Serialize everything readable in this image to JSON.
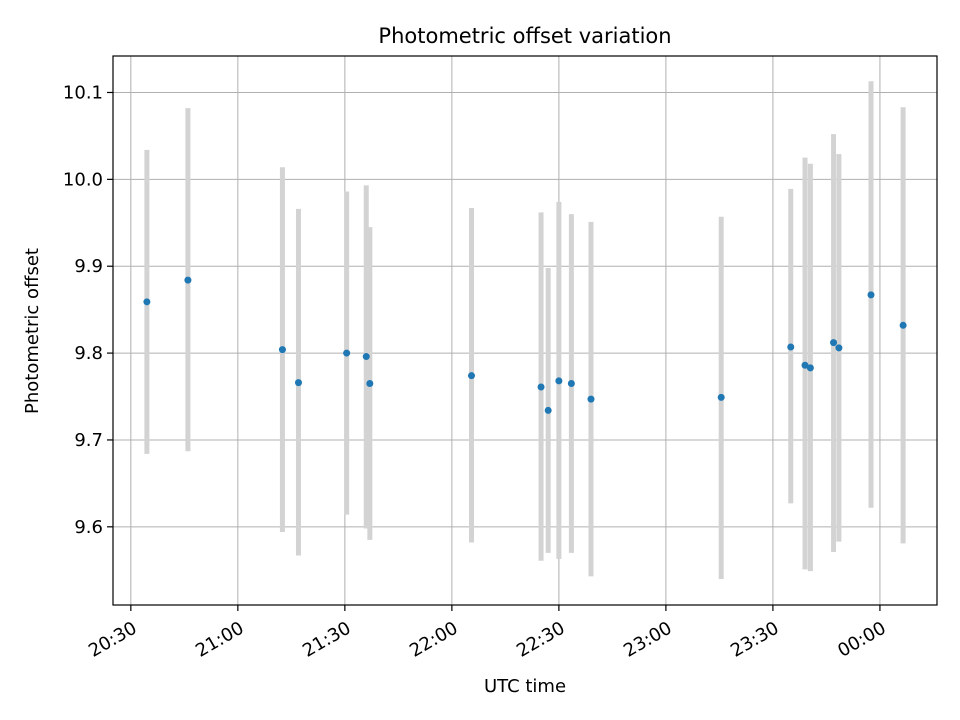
{
  "chart_data": {
    "type": "scatter",
    "title": "Photometric offset variation",
    "xlabel": "UTC time",
    "ylabel": "Photometric offset",
    "x_unit": "UTC clock time (HH:MM)",
    "xlim": [
      "20:25",
      "00:16"
    ],
    "ylim": [
      9.51,
      10.142
    ],
    "grid": true,
    "legend": "none",
    "marker_color": "#1f77b4",
    "errorbar_color": "#d3d3d3",
    "xticks": [
      "20:30",
      "21:00",
      "21:30",
      "22:00",
      "22:30",
      "23:00",
      "23:30",
      "00:00"
    ],
    "yticks": [
      9.6,
      9.7,
      9.8,
      9.9,
      10.0,
      10.1
    ],
    "ytick_labels": [
      "9.6",
      "9.7",
      "9.8",
      "9.9",
      "10.0",
      "10.1"
    ],
    "points": [
      {
        "x": "20:34:30",
        "y": 9.859,
        "ylow": 9.684,
        "yhigh": 10.034
      },
      {
        "x": "20:46:00",
        "y": 9.884,
        "ylow": 9.687,
        "yhigh": 10.082
      },
      {
        "x": "21:12:30",
        "y": 9.804,
        "ylow": 9.594,
        "yhigh": 10.014
      },
      {
        "x": "21:17:00",
        "y": 9.766,
        "ylow": 9.567,
        "yhigh": 9.966
      },
      {
        "x": "21:30:30",
        "y": 9.8,
        "ylow": 9.614,
        "yhigh": 9.986
      },
      {
        "x": "21:36:00",
        "y": 9.796,
        "ylow": 9.598,
        "yhigh": 9.993
      },
      {
        "x": "21:37:00",
        "y": 9.765,
        "ylow": 9.585,
        "yhigh": 9.945
      },
      {
        "x": "22:05:30",
        "y": 9.774,
        "ylow": 9.582,
        "yhigh": 9.967
      },
      {
        "x": "22:25:00",
        "y": 9.761,
        "ylow": 9.561,
        "yhigh": 9.962
      },
      {
        "x": "22:27:00",
        "y": 9.734,
        "ylow": 9.57,
        "yhigh": 9.898
      },
      {
        "x": "22:30:00",
        "y": 9.768,
        "ylow": 9.563,
        "yhigh": 9.974
      },
      {
        "x": "22:33:30",
        "y": 9.765,
        "ylow": 9.57,
        "yhigh": 9.96
      },
      {
        "x": "22:39:00",
        "y": 9.747,
        "ylow": 9.543,
        "yhigh": 9.951
      },
      {
        "x": "23:15:30",
        "y": 9.749,
        "ylow": 9.54,
        "yhigh": 9.957
      },
      {
        "x": "23:35:00",
        "y": 9.807,
        "ylow": 9.627,
        "yhigh": 9.989
      },
      {
        "x": "23:39:00",
        "y": 9.786,
        "ylow": 9.551,
        "yhigh": 10.025
      },
      {
        "x": "23:40:30",
        "y": 9.783,
        "ylow": 9.549,
        "yhigh": 10.018
      },
      {
        "x": "23:47:00",
        "y": 9.812,
        "ylow": 9.571,
        "yhigh": 10.052
      },
      {
        "x": "23:48:30",
        "y": 9.806,
        "ylow": 9.583,
        "yhigh": 10.029
      },
      {
        "x": "23:57:30",
        "y": 9.867,
        "ylow": 9.622,
        "yhigh": 10.113
      },
      {
        "x": "00:06:30",
        "y": 9.832,
        "ylow": 9.581,
        "yhigh": 10.083
      }
    ]
  }
}
